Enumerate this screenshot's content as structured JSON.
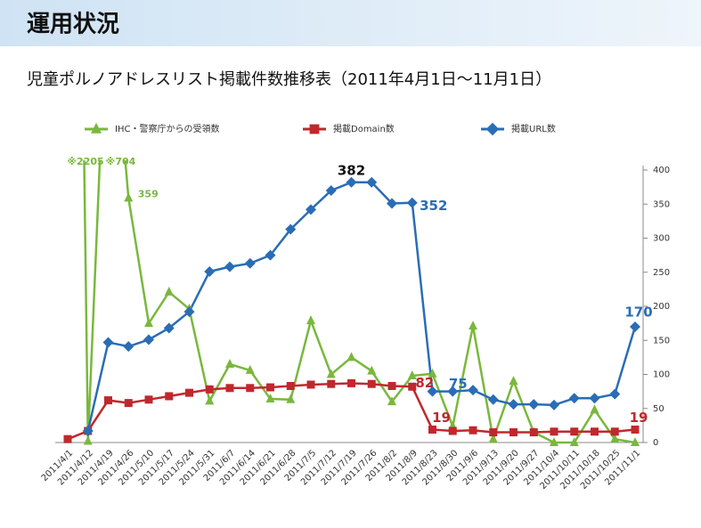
{
  "header": {
    "title": "運用状況"
  },
  "chart_data": {
    "type": "line",
    "title": "児童ポルノアドレスリスト掲載件数推移表（2011年4月1日～11月1日）",
    "categories": [
      "2011/4/1",
      "2011/4/12",
      "2011/4/19",
      "2011/4/26",
      "2011/5/10",
      "2011/5/17",
      "2011/5/24",
      "2011/5/31",
      "2011/6/7",
      "2011/6/14",
      "2011/6/21",
      "2011/6/28",
      "2011/7/5",
      "2011/7/12",
      "2011/7/19",
      "2011/7/26",
      "2011/8/2",
      "2011/8/9",
      "2011/8/23",
      "2011/8/30",
      "2011/9/6",
      "2011/9/13",
      "2011/9/20",
      "2011/9/27",
      "2011/10/4",
      "2011/10/11",
      "2011/10/18",
      "2011/10/25",
      "2011/11/1"
    ],
    "series": [
      {
        "name": "IHC・警察庁からの受領数",
        "color": "#79b83c",
        "marker": "triangle",
        "values": [
          2205,
          2,
          704,
          359,
          175,
          221,
          196,
          61,
          115,
          106,
          64,
          63,
          179,
          100,
          125,
          105,
          60,
          98,
          101,
          24,
          171,
          5,
          90,
          15,
          0,
          0,
          48,
          5,
          0
        ],
        "value_labels": [
          "※2205",
          null,
          "※704",
          null,
          null,
          null,
          null,
          null,
          null,
          null,
          null,
          null,
          null,
          null,
          null,
          null,
          null,
          null,
          null,
          null,
          null,
          null,
          null,
          null,
          null,
          null,
          null,
          null,
          null
        ]
      },
      {
        "name": "掲載Domain数",
        "color": "#c0282d",
        "marker": "square",
        "values": [
          5,
          17,
          62,
          58,
          63,
          68,
          73,
          78,
          80,
          80,
          81,
          83,
          85,
          86,
          87,
          86,
          83,
          82,
          19,
          17,
          18,
          15,
          15,
          15,
          16,
          16,
          16,
          16,
          19
        ]
      },
      {
        "name": "掲載URL数",
        "color": "#2a6db5",
        "marker": "diamond",
        "values": [
          null,
          17,
          147,
          141,
          151,
          168,
          192,
          251,
          258,
          263,
          275,
          313,
          342,
          370,
          382,
          382,
          351,
          352,
          75,
          75,
          77,
          63,
          56,
          56,
          55,
          65,
          65,
          71,
          170
        ]
      }
    ],
    "ylim": [
      0,
      400
    ],
    "yticks": [
      0,
      50,
      100,
      150,
      200,
      250,
      300,
      350,
      400
    ],
    "grid": false
  }
}
